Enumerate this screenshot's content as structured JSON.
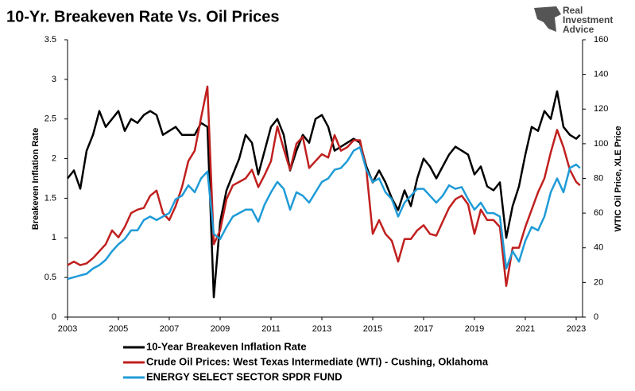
{
  "chart_data": {
    "type": "line",
    "title": "10-Yr. Breakeven Rate Vs. Oil Prices",
    "brand": [
      "Real",
      "Investment",
      "Advice"
    ],
    "y_label": "Breakeven Inflation Rate",
    "y2_label": "WTIC Oil Price, XLE Price",
    "x": [
      2003,
      2003.25,
      2003.5,
      2003.75,
      2004,
      2004.25,
      2004.5,
      2004.75,
      2005,
      2005.25,
      2005.5,
      2005.75,
      2006,
      2006.25,
      2006.5,
      2006.75,
      2007,
      2007.25,
      2007.5,
      2007.75,
      2008,
      2008.25,
      2008.5,
      2008.75,
      2009,
      2009.25,
      2009.5,
      2009.75,
      2010,
      2010.25,
      2010.5,
      2010.75,
      2011,
      2011.25,
      2011.5,
      2011.75,
      2012,
      2012.25,
      2012.5,
      2012.75,
      2013,
      2013.25,
      2013.5,
      2013.75,
      2014,
      2014.25,
      2014.5,
      2014.75,
      2015,
      2015.25,
      2015.5,
      2015.75,
      2016,
      2016.25,
      2016.5,
      2016.75,
      2017,
      2017.25,
      2017.5,
      2017.75,
      2018,
      2018.25,
      2018.5,
      2018.75,
      2019,
      2019.25,
      2019.5,
      2019.75,
      2020,
      2020.25,
      2020.5,
      2020.75,
      2021,
      2021.25,
      2021.5,
      2021.75,
      2022,
      2022.25,
      2022.5,
      2022.75,
      2023,
      2023.15
    ],
    "series": [
      {
        "name": "10-Year Breakeven Inflation Rate",
        "color": "#000000",
        "axis": "y",
        "values": [
          1.75,
          1.85,
          1.62,
          2.1,
          2.3,
          2.6,
          2.4,
          2.5,
          2.6,
          2.35,
          2.5,
          2.45,
          2.55,
          2.6,
          2.55,
          2.3,
          2.35,
          2.4,
          2.3,
          2.3,
          2.3,
          2.45,
          2.4,
          0.25,
          1.2,
          1.6,
          1.8,
          2.0,
          2.3,
          2.2,
          1.8,
          2.1,
          2.4,
          2.5,
          2.3,
          1.85,
          2.1,
          2.3,
          2.2,
          2.5,
          2.55,
          2.4,
          2.1,
          2.15,
          2.2,
          2.25,
          2.2,
          1.9,
          1.7,
          1.85,
          1.7,
          1.5,
          1.35,
          1.6,
          1.4,
          1.75,
          2.0,
          1.9,
          1.75,
          1.9,
          2.05,
          2.15,
          2.1,
          2.05,
          1.8,
          1.9,
          1.65,
          1.6,
          1.7,
          1.0,
          1.4,
          1.65,
          2.05,
          2.4,
          2.35,
          2.6,
          2.5,
          2.85,
          2.4,
          2.3,
          2.25,
          2.3
        ]
      },
      {
        "name": "Crude Oil Prices: West Texas Intermediate (WTI) - Cushing, Oklahoma",
        "color": "#c0201f",
        "axis": "y2",
        "values": [
          30,
          32,
          30,
          31,
          34,
          38,
          42,
          50,
          46,
          52,
          60,
          62,
          63,
          70,
          73,
          60,
          56,
          64,
          75,
          90,
          96,
          115,
          133,
          42,
          50,
          68,
          76,
          78,
          80,
          85,
          75,
          82,
          90,
          110,
          97,
          85,
          100,
          104,
          86,
          90,
          94,
          92,
          105,
          96,
          98,
          102,
          102,
          85,
          48,
          56,
          48,
          44,
          32,
          45,
          45,
          50,
          53,
          48,
          47,
          55,
          63,
          68,
          70,
          65,
          48,
          62,
          56,
          56,
          52,
          18,
          40,
          40,
          52,
          62,
          72,
          80,
          95,
          108,
          98,
          85,
          78,
          76
        ]
      },
      {
        "name": "ENERGY SELECT SECTOR SPDR FUND",
        "color": "#1f9bd7",
        "axis": "y2",
        "values": [
          22,
          23,
          24,
          25,
          28,
          30,
          33,
          38,
          42,
          45,
          50,
          50,
          56,
          58,
          56,
          58,
          60,
          68,
          70,
          76,
          72,
          80,
          84,
          48,
          45,
          52,
          58,
          60,
          62,
          62,
          55,
          65,
          72,
          78,
          74,
          62,
          72,
          70,
          66,
          72,
          78,
          80,
          85,
          86,
          90,
          96,
          98,
          85,
          78,
          80,
          72,
          68,
          58,
          66,
          70,
          74,
          74,
          70,
          66,
          70,
          76,
          74,
          75,
          68,
          62,
          66,
          60,
          60,
          58,
          28,
          38,
          32,
          44,
          52,
          50,
          58,
          72,
          80,
          72,
          86,
          88,
          86
        ]
      }
    ],
    "xlim": [
      2003,
      2023.25
    ],
    "xticks": [
      2003,
      2005,
      2007,
      2009,
      2011,
      2013,
      2015,
      2017,
      2019,
      2021,
      2023
    ],
    "ylim": [
      0,
      3.5
    ],
    "yticks": [
      0,
      0.5,
      1,
      1.5,
      2,
      2.5,
      3,
      3.5
    ],
    "y2lim": [
      0,
      160
    ],
    "y2ticks": [
      0,
      20,
      40,
      60,
      80,
      100,
      120,
      140,
      160
    ],
    "grid": false,
    "legend": "bottom"
  }
}
